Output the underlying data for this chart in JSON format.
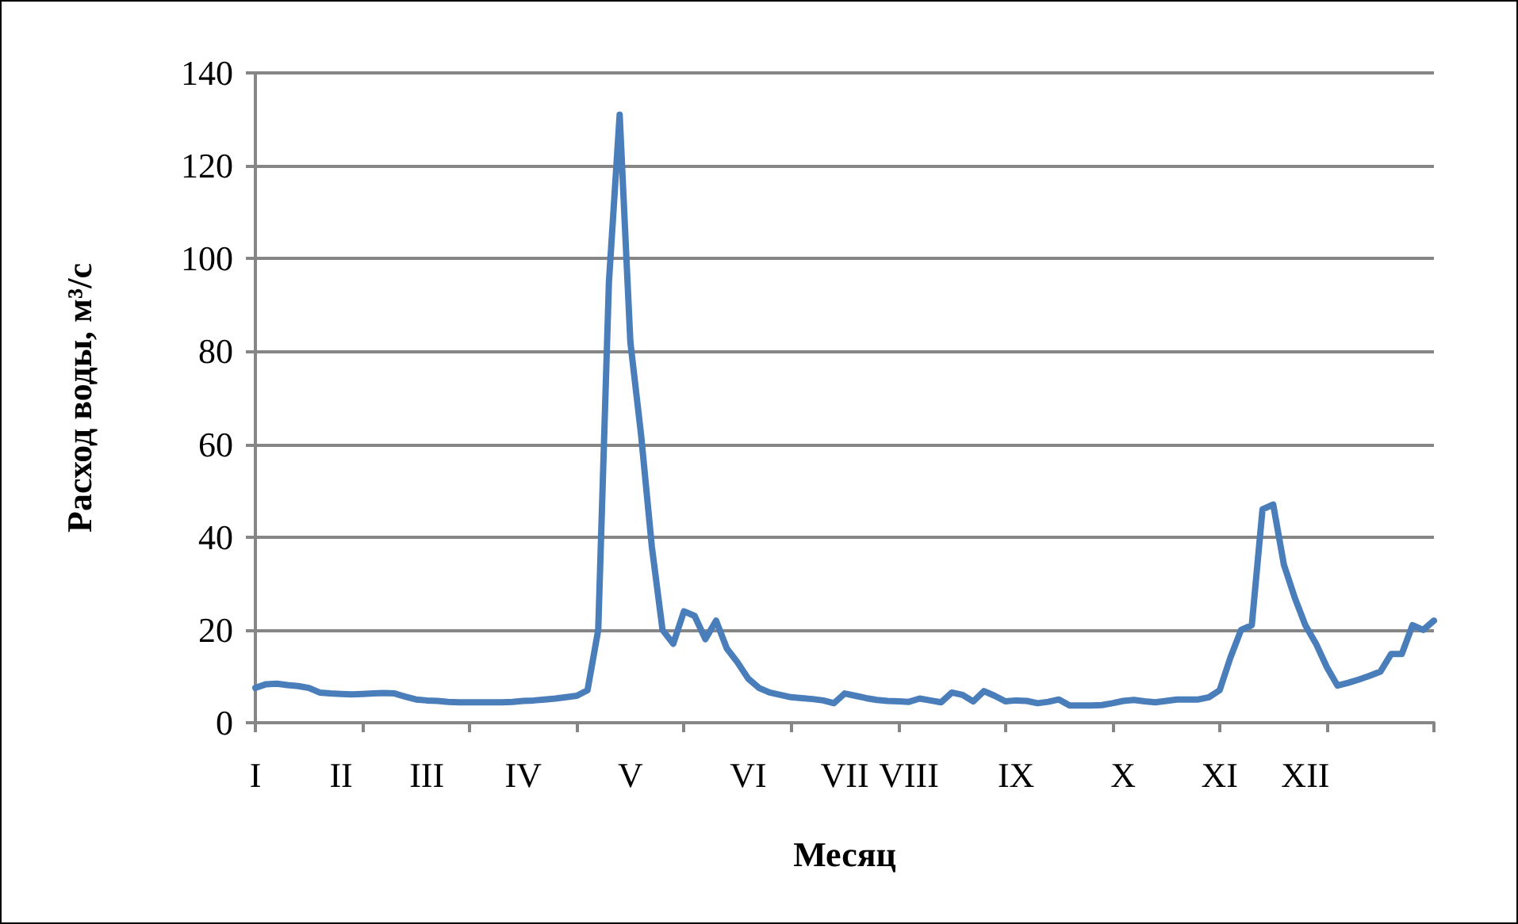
{
  "chart_data": {
    "type": "line",
    "xlabel": "Месяц",
    "ylabel": "Расход воды, м³/с",
    "categories": [
      "I",
      null,
      null,
      null,
      null,
      null,
      null,
      null,
      "II",
      null,
      null,
      null,
      null,
      null,
      null,
      null,
      "III",
      null,
      null,
      null,
      null,
      null,
      null,
      null,
      null,
      "IV",
      null,
      null,
      null,
      null,
      null,
      null,
      null,
      null,
      null,
      "V",
      null,
      null,
      null,
      null,
      null,
      null,
      null,
      null,
      null,
      null,
      "VI",
      null,
      null,
      null,
      null,
      null,
      null,
      null,
      null,
      "VII",
      null,
      null,
      null,
      null,
      null,
      "VIII",
      null,
      null,
      null,
      null,
      null,
      null,
      null,
      null,
      null,
      "IX",
      null,
      null,
      null,
      null,
      null,
      null,
      null,
      null,
      null,
      "X",
      null,
      null,
      null,
      null,
      null,
      null,
      null,
      null,
      "XI",
      null,
      null,
      null,
      null,
      null,
      null,
      null,
      "XII",
      null,
      null,
      null,
      null,
      null,
      null,
      null,
      null,
      null,
      null,
      null,
      null
    ],
    "series": [
      {
        "color": "#4a7ebb",
        "values": [
          7.5,
          8.3,
          8.4,
          8.1,
          7.9,
          7.5,
          6.5,
          6.3,
          6.2,
          6.1,
          6.2,
          6.3,
          6.4,
          6.3,
          5.6,
          5,
          4.8,
          4.7,
          4.5,
          4.4,
          4.4,
          4.4,
          4.4,
          4.4,
          4.5,
          4.7,
          4.8,
          5,
          5.2,
          5.5,
          5.8,
          7,
          20,
          95,
          131,
          82,
          62,
          38,
          20,
          17,
          24,
          23,
          18,
          22,
          16,
          13,
          9.5,
          7.5,
          6.5,
          6,
          5.5,
          5.3,
          5.1,
          4.8,
          4.2,
          6.3,
          5.8,
          5.3,
          4.9,
          4.7,
          4.6,
          4.5,
          5.2,
          4.8,
          4.4,
          6.5,
          6,
          4.6,
          6.8,
          5.8,
          4.6,
          4.8,
          4.7,
          4.2,
          4.5,
          5,
          3.7,
          3.7,
          3.7,
          3.8,
          4.2,
          4.7,
          4.9,
          4.6,
          4.4,
          4.7,
          5,
          5,
          5,
          5.5,
          7,
          14,
          20,
          21,
          46,
          47,
          34,
          27,
          21,
          17,
          12,
          8,
          8.6,
          9.3,
          10.1,
          11,
          14.8,
          14.8,
          21,
          20,
          22
        ]
      }
    ],
    "ylim": [
      0,
      140
    ],
    "yticks": [
      0,
      20,
      40,
      60,
      80,
      100,
      120,
      140
    ],
    "grid": "y",
    "marker": "none",
    "line_style": "solid"
  }
}
